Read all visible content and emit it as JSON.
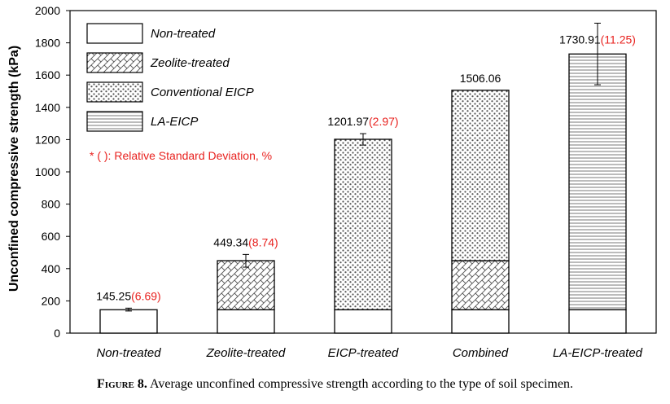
{
  "chart_data": {
    "type": "bar",
    "stacked": true,
    "ylabel": "Unconfined compressive strength (kPa)",
    "ylim": [
      0,
      2000
    ],
    "yticks": [
      0,
      200,
      400,
      600,
      800,
      1000,
      1200,
      1400,
      1600,
      1800,
      2000
    ],
    "ytick_labels": [
      "0",
      "200",
      "400",
      "600",
      "800",
      "1000",
      "1200",
      "1400",
      "1600",
      "1800",
      "2000"
    ],
    "grid": false,
    "legend_position": "top-left",
    "categories": [
      "Non-treated",
      "Zeolite-treated",
      "EICP-treated",
      "Combined",
      "LA-EICP-treated"
    ],
    "series": [
      {
        "name": "Non-treated",
        "pattern": "blank",
        "values": [
          145.25,
          145.25,
          145.25,
          145.25,
          145.25
        ]
      },
      {
        "name": "Zeolite-treated",
        "pattern": "crosshatch",
        "values": [
          0,
          304.09,
          0,
          304.09,
          0
        ]
      },
      {
        "name": "Conventional EICP",
        "pattern": "dots",
        "values": [
          0,
          0,
          1056.72,
          1056.72,
          0
        ]
      },
      {
        "name": "LA-EICP",
        "pattern": "horizontal-lines",
        "values": [
          0,
          0,
          0,
          0,
          1585.66
        ]
      }
    ],
    "totals": [
      145.25,
      449.34,
      1201.97,
      1506.06,
      1730.91
    ],
    "error_bars": [
      {
        "low": 137,
        "high": 155
      },
      {
        "low": 409,
        "high": 488
      },
      {
        "low": 1166,
        "high": 1237
      },
      null,
      {
        "low": 1540,
        "high": 1922
      }
    ],
    "value_labels": [
      {
        "value": "145.25",
        "rsd": "(6.69)"
      },
      {
        "value": "449.34",
        "rsd": "(8.74)"
      },
      {
        "value": "1201.97",
        "rsd": "(2.97)"
      },
      {
        "value": "1506.06",
        "rsd": ""
      },
      {
        "value": "1730.91",
        "rsd": "(11.25)"
      }
    ],
    "annotation": "* (   ): Relative Standard Deviation, %",
    "colors": {
      "axis": "#000000",
      "rsd_text": "#e8211e",
      "pattern": "#555555"
    }
  },
  "caption": {
    "label": "Figure 8.",
    "text": " Average unconfined compressive strength according to the type of soil specimen."
  }
}
